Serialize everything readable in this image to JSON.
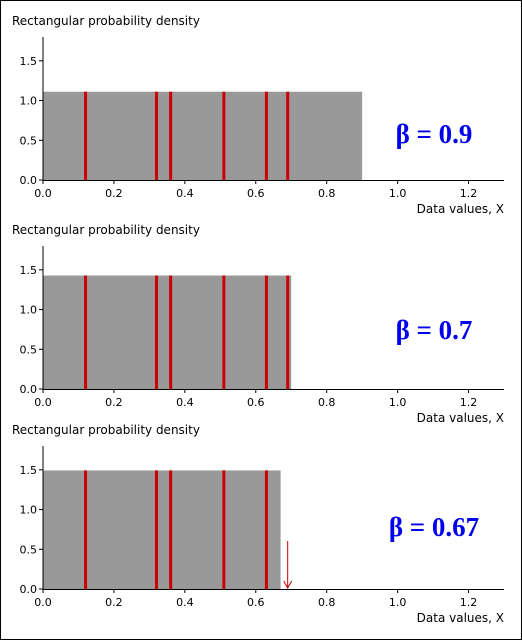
{
  "chart_data": [
    {
      "type": "bar",
      "ylabel": "Rectangular probability density",
      "xlabel": "Data values, X",
      "xlim": [
        0,
        1.3
      ],
      "ylim": [
        0,
        1.8
      ],
      "xticks": [
        "0.0",
        "0.2",
        "0.4",
        "0.6",
        "0.8",
        "1.0",
        "1.2"
      ],
      "yticks": [
        "0.0",
        "0.5",
        "1.0",
        "1.5"
      ],
      "beta": 0.9,
      "density": 1.1111,
      "annotation": "β = 0.9",
      "data_values": [
        0.12,
        0.32,
        0.36,
        0.51,
        0.63,
        0.69
      ],
      "arrow_at": null,
      "colors": {
        "fill": "#999999",
        "data_line": "#cc0000",
        "annotation": "#0000ee"
      }
    },
    {
      "type": "bar",
      "ylabel": "Rectangular probability density",
      "xlabel": "Data values, X",
      "xlim": [
        0,
        1.3
      ],
      "ylim": [
        0,
        1.8
      ],
      "xticks": [
        "0.0",
        "0.2",
        "0.4",
        "0.6",
        "0.8",
        "1.0",
        "1.2"
      ],
      "yticks": [
        "0.0",
        "0.5",
        "1.0",
        "1.5"
      ],
      "beta": 0.7,
      "density": 1.4286,
      "annotation": "β = 0.7",
      "data_values": [
        0.12,
        0.32,
        0.36,
        0.51,
        0.63,
        0.69
      ],
      "arrow_at": null,
      "colors": {
        "fill": "#999999",
        "data_line": "#cc0000",
        "annotation": "#0000ee"
      }
    },
    {
      "type": "bar",
      "ylabel": "Rectangular probability density",
      "xlabel": "Data values, X",
      "xlim": [
        0,
        1.3
      ],
      "ylim": [
        0,
        1.8
      ],
      "xticks": [
        "0.0",
        "0.2",
        "0.4",
        "0.6",
        "0.8",
        "1.0",
        "1.2"
      ],
      "yticks": [
        "0.0",
        "0.5",
        "1.0",
        "1.5"
      ],
      "beta": 0.67,
      "density": 1.4925,
      "annotation": "β = 0.67",
      "data_values": [
        0.12,
        0.32,
        0.36,
        0.51,
        0.63
      ],
      "arrow_at": 0.69,
      "colors": {
        "fill": "#999999",
        "data_line": "#cc0000",
        "annotation": "#0000ee"
      }
    }
  ]
}
